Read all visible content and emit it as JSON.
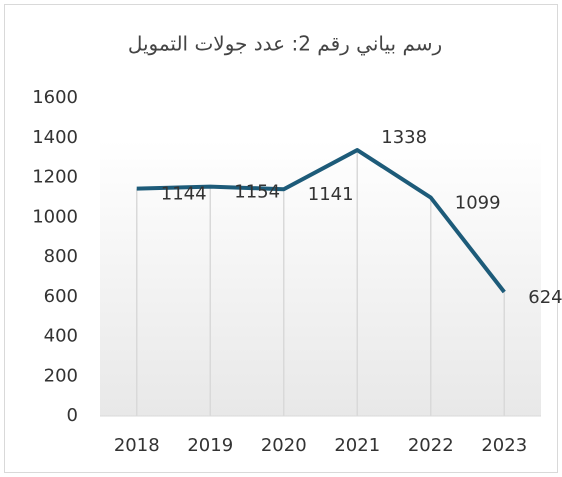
{
  "chart_data": {
    "type": "line",
    "title": "رسم بياني رقم 2: عدد جولات التمويل",
    "categories": [
      "2018",
      "2019",
      "2020",
      "2021",
      "2022",
      "2023"
    ],
    "values": [
      1144,
      1154,
      1141,
      1338,
      1099,
      624
    ],
    "color": "#1d5b79",
    "ylim": [
      0,
      1600
    ],
    "yticks": [
      0,
      200,
      400,
      600,
      800,
      1000,
      1200,
      1400,
      1600
    ],
    "drop_lines": true
  }
}
